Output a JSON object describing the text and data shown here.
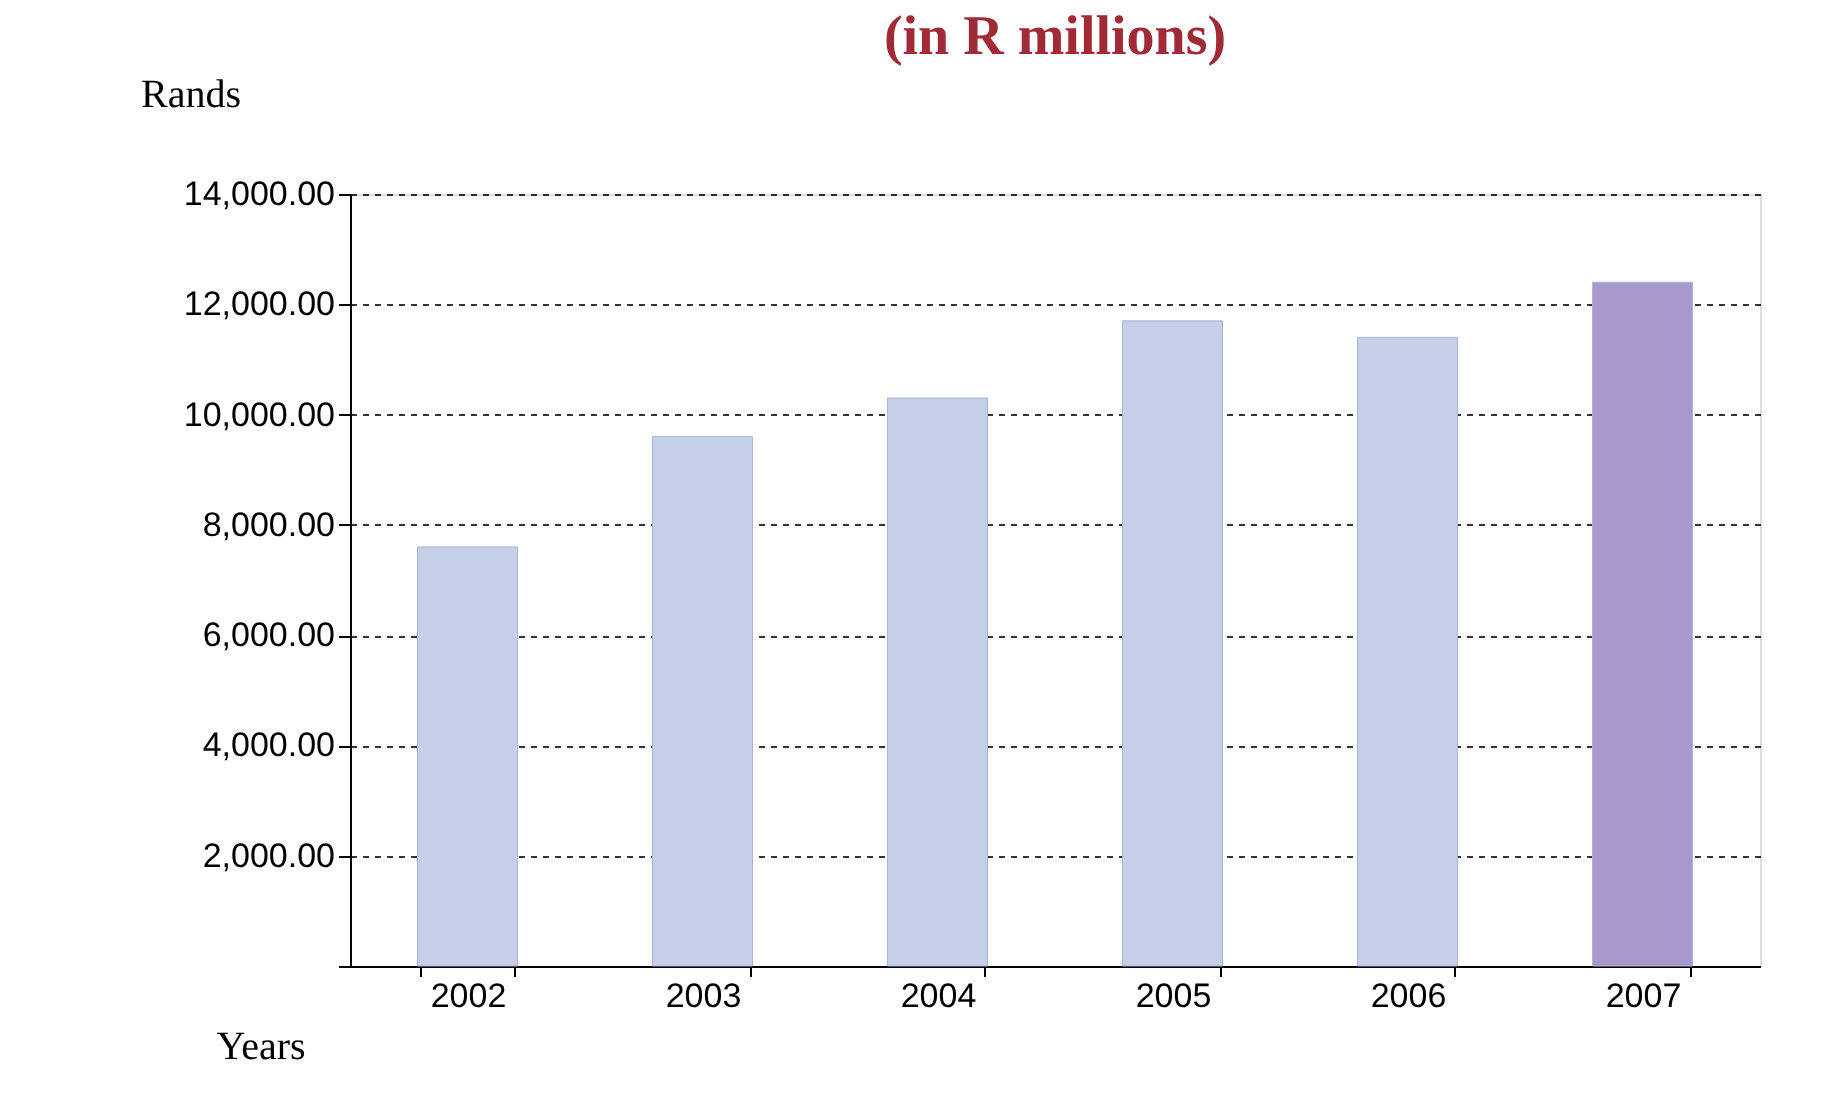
{
  "chart_data": {
    "type": "bar",
    "title": "(in R millions)",
    "xlabel": "Years",
    "ylabel": "Rands",
    "categories": [
      "2002",
      "2003",
      "2004",
      "2005",
      "2006",
      "2007"
    ],
    "values": [
      7600,
      9600,
      10300,
      11700,
      11400,
      12400
    ],
    "colors": [
      "#c5cfe8",
      "#c5cfe8",
      "#c5cfe8",
      "#c5cfe8",
      "#c5cfe8",
      "#a898cc"
    ],
    "ylim": [
      0,
      14000
    ],
    "yticks": [
      {
        "value": 0,
        "label": null
      },
      {
        "value": 2000,
        "label": "2,000.00"
      },
      {
        "value": 4000,
        "label": "4,000.00"
      },
      {
        "value": 6000,
        "label": "6,000.00"
      },
      {
        "value": 8000,
        "label": "8,000.00"
      },
      {
        "value": 10000,
        "label": "10,000.00"
      },
      {
        "value": 12000,
        "label": "12,000.00"
      },
      {
        "value": 14000,
        "label": "14,000.00"
      }
    ],
    "grid": "y"
  }
}
